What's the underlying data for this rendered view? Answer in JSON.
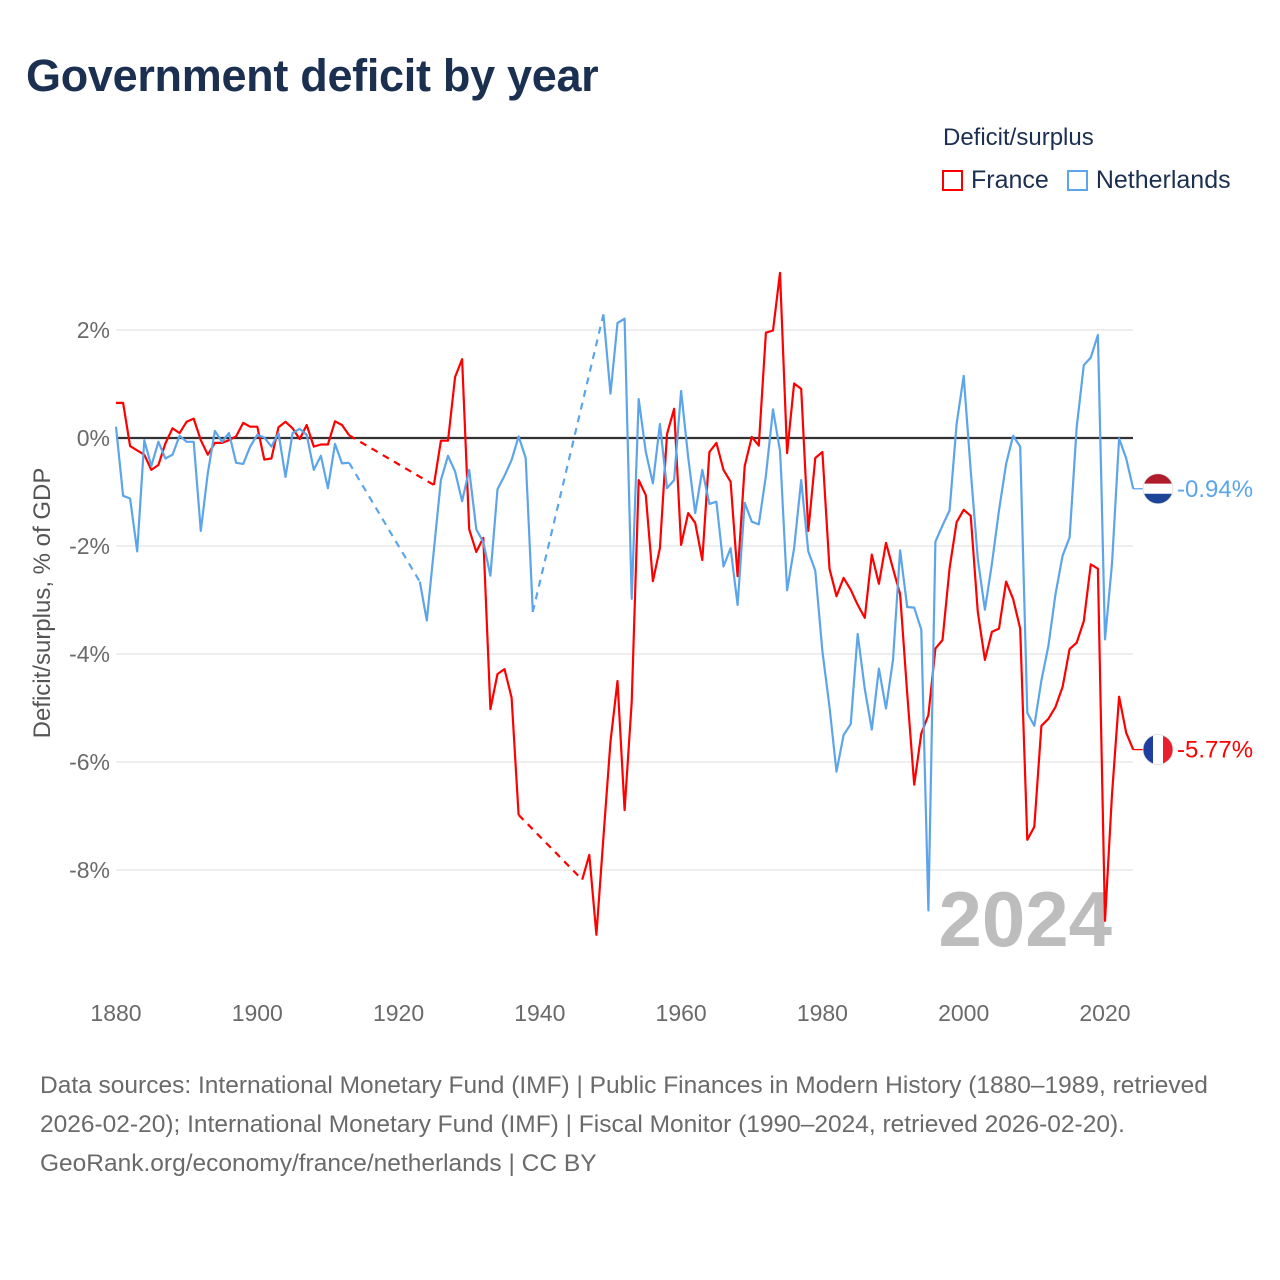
{
  "title": "Government deficit by year",
  "legend": {
    "title": "Deficit/surplus",
    "items": [
      {
        "label": "France",
        "color": "#ff0000"
      },
      {
        "label": "Netherlands",
        "color": "#5da5ea"
      }
    ]
  },
  "footer": {
    "sources": "Data sources: International Monetary Fund (IMF) | Public Finances in Modern History (1880–1989, retrieved 2026-02-20); International Monetary Fund (IMF) | Fiscal Monitor (1990–2024, retrieved 2026-02-20).",
    "credit": "GeoRank.org/economy/france/netherlands | CC BY"
  },
  "chart_data": {
    "type": "line",
    "title": "Government deficit by year",
    "xlabel": "",
    "ylabel": "Deficit/surplus, % of GDP",
    "xlim": [
      1880,
      2024
    ],
    "ylim": [
      -10,
      3.2
    ],
    "x_ticks": [
      "1880",
      "1900",
      "1920",
      "1940",
      "1960",
      "1980",
      "2000",
      "2020"
    ],
    "y_ticks": [
      {
        "value": 2,
        "label": "2%"
      },
      {
        "value": 0,
        "label": "0%"
      },
      {
        "value": -2,
        "label": "-2%"
      },
      {
        "value": -4,
        "label": "-4%"
      },
      {
        "value": -6,
        "label": "-6%"
      },
      {
        "value": -8,
        "label": "-8%"
      }
    ],
    "grid": true,
    "current_year_label": "2024",
    "end_labels": {
      "France": "-5.77%",
      "Netherlands": "-0.94%"
    },
    "series": [
      {
        "name": "France",
        "color": "#ff0000",
        "points": [
          [
            1880,
            0.65
          ],
          [
            1881,
            0.65
          ],
          [
            1882,
            -0.15
          ],
          [
            1883,
            -0.23
          ],
          [
            1884,
            -0.31
          ],
          [
            1885,
            -0.59
          ],
          [
            1886,
            -0.5
          ],
          [
            1887,
            -0.1
          ],
          [
            1888,
            0.18
          ],
          [
            1889,
            0.09
          ],
          [
            1890,
            0.3
          ],
          [
            1891,
            0.36
          ],
          [
            1892,
            -0.04
          ],
          [
            1893,
            -0.31
          ],
          [
            1894,
            -0.09
          ],
          [
            1895,
            -0.09
          ],
          [
            1896,
            -0.04
          ],
          [
            1897,
            0.03
          ],
          [
            1898,
            0.28
          ],
          [
            1899,
            0.21
          ],
          [
            1900,
            0.21
          ],
          [
            1901,
            -0.4
          ],
          [
            1902,
            -0.38
          ],
          [
            1903,
            0.2
          ],
          [
            1904,
            0.3
          ],
          [
            1905,
            0.18
          ],
          [
            1906,
            -0.02
          ],
          [
            1907,
            0.24
          ],
          [
            1908,
            -0.16
          ],
          [
            1909,
            -0.12
          ],
          [
            1910,
            -0.12
          ],
          [
            1911,
            0.31
          ],
          [
            1912,
            0.24
          ],
          [
            1913,
            0.05
          ],
          [
            1925,
            -0.87
          ],
          [
            1926,
            -0.05
          ],
          [
            1927,
            -0.05
          ],
          [
            1928,
            1.13
          ],
          [
            1929,
            1.46
          ],
          [
            1930,
            -1.69
          ],
          [
            1931,
            -2.11
          ],
          [
            1932,
            -1.85
          ],
          [
            1933,
            -5.02
          ],
          [
            1934,
            -4.37
          ],
          [
            1935,
            -4.28
          ],
          [
            1936,
            -4.81
          ],
          [
            1937,
            -6.98
          ],
          [
            1946,
            -8.18
          ],
          [
            1947,
            -7.72
          ],
          [
            1948,
            -9.2
          ],
          [
            1949,
            -7.4
          ],
          [
            1950,
            -5.62
          ],
          [
            1951,
            -4.5
          ],
          [
            1952,
            -6.89
          ],
          [
            1953,
            -4.89
          ],
          [
            1954,
            -0.78
          ],
          [
            1955,
            -1.06
          ],
          [
            1956,
            -2.65
          ],
          [
            1957,
            -2.04
          ],
          [
            1958,
            0.07
          ],
          [
            1959,
            0.54
          ],
          [
            1960,
            -1.98
          ],
          [
            1961,
            -1.39
          ],
          [
            1962,
            -1.57
          ],
          [
            1963,
            -2.26
          ],
          [
            1964,
            -0.26
          ],
          [
            1965,
            -0.09
          ],
          [
            1966,
            -0.59
          ],
          [
            1967,
            -0.81
          ],
          [
            1968,
            -2.56
          ],
          [
            1969,
            -0.52
          ],
          [
            1970,
            0.02
          ],
          [
            1971,
            -0.14
          ],
          [
            1972,
            1.95
          ],
          [
            1973,
            1.99
          ],
          [
            1974,
            3.06
          ],
          [
            1975,
            -0.28
          ],
          [
            1976,
            1.01
          ],
          [
            1977,
            0.91
          ],
          [
            1978,
            -1.72
          ],
          [
            1979,
            -0.37
          ],
          [
            1980,
            -0.26
          ],
          [
            1981,
            -2.42
          ],
          [
            1982,
            -2.93
          ],
          [
            1983,
            -2.59
          ],
          [
            1984,
            -2.81
          ],
          [
            1985,
            -3.09
          ],
          [
            1986,
            -3.33
          ],
          [
            1987,
            -2.16
          ],
          [
            1988,
            -2.7
          ],
          [
            1989,
            -1.94
          ],
          [
            1990,
            -2.42
          ],
          [
            1991,
            -2.89
          ],
          [
            1992,
            -4.73
          ],
          [
            1993,
            -6.42
          ],
          [
            1994,
            -5.47
          ],
          [
            1995,
            -5.13
          ],
          [
            1996,
            -3.9
          ],
          [
            1997,
            -3.74
          ],
          [
            1998,
            -2.41
          ],
          [
            1999,
            -1.56
          ],
          [
            2000,
            -1.33
          ],
          [
            2001,
            -1.44
          ],
          [
            2002,
            -3.22
          ],
          [
            2003,
            -4.11
          ],
          [
            2004,
            -3.59
          ],
          [
            2005,
            -3.53
          ],
          [
            2006,
            -2.66
          ],
          [
            2007,
            -2.98
          ],
          [
            2008,
            -3.53
          ],
          [
            2009,
            -7.44
          ],
          [
            2010,
            -7.2
          ],
          [
            2011,
            -5.33
          ],
          [
            2012,
            -5.2
          ],
          [
            2013,
            -4.98
          ],
          [
            2014,
            -4.61
          ],
          [
            2015,
            -3.91
          ],
          [
            2016,
            -3.79
          ],
          [
            2017,
            -3.39
          ],
          [
            2018,
            -2.34
          ],
          [
            2019,
            -2.42
          ],
          [
            2020,
            -8.94
          ],
          [
            2021,
            -6.6
          ],
          [
            2022,
            -4.79
          ],
          [
            2023,
            -5.46
          ],
          [
            2024,
            -5.77
          ]
        ]
      },
      {
        "name": "Netherlands",
        "color": "#5da5ea",
        "points": [
          [
            1880,
            0.21
          ],
          [
            1881,
            -1.07
          ],
          [
            1882,
            -1.12
          ],
          [
            1883,
            -2.1
          ],
          [
            1884,
            -0.04
          ],
          [
            1885,
            -0.52
          ],
          [
            1886,
            -0.07
          ],
          [
            1887,
            -0.38
          ],
          [
            1888,
            -0.31
          ],
          [
            1889,
            0.04
          ],
          [
            1890,
            -0.07
          ],
          [
            1891,
            -0.07
          ],
          [
            1892,
            -1.72
          ],
          [
            1893,
            -0.65
          ],
          [
            1894,
            0.13
          ],
          [
            1895,
            -0.07
          ],
          [
            1896,
            0.09
          ],
          [
            1897,
            -0.46
          ],
          [
            1898,
            -0.48
          ],
          [
            1899,
            -0.16
          ],
          [
            1900,
            0.06
          ],
          [
            1901,
            0.01
          ],
          [
            1902,
            -0.16
          ],
          [
            1903,
            0.09
          ],
          [
            1904,
            -0.72
          ],
          [
            1905,
            0.09
          ],
          [
            1906,
            0.17
          ],
          [
            1907,
            0.06
          ],
          [
            1908,
            -0.59
          ],
          [
            1909,
            -0.33
          ],
          [
            1910,
            -0.93
          ],
          [
            1911,
            -0.11
          ],
          [
            1912,
            -0.47
          ],
          [
            1913,
            -0.46
          ],
          [
            1923,
            -2.66
          ],
          [
            1924,
            -3.38
          ],
          [
            1925,
            -2.07
          ],
          [
            1926,
            -0.78
          ],
          [
            1927,
            -0.33
          ],
          [
            1928,
            -0.62
          ],
          [
            1929,
            -1.17
          ],
          [
            1930,
            -0.59
          ],
          [
            1931,
            -1.69
          ],
          [
            1932,
            -1.93
          ],
          [
            1933,
            -2.55
          ],
          [
            1934,
            -0.95
          ],
          [
            1935,
            -0.7
          ],
          [
            1936,
            -0.41
          ],
          [
            1937,
            0.03
          ],
          [
            1938,
            -0.37
          ],
          [
            1939,
            -3.22
          ],
          [
            1949,
            2.29
          ],
          [
            1950,
            0.82
          ],
          [
            1951,
            2.13
          ],
          [
            1952,
            2.21
          ],
          [
            1953,
            -2.98
          ],
          [
            1954,
            0.72
          ],
          [
            1955,
            -0.26
          ],
          [
            1956,
            -0.84
          ],
          [
            1957,
            0.26
          ],
          [
            1958,
            -0.93
          ],
          [
            1959,
            -0.78
          ],
          [
            1960,
            0.87
          ],
          [
            1961,
            -0.36
          ],
          [
            1962,
            -1.39
          ],
          [
            1963,
            -0.59
          ],
          [
            1964,
            -1.22
          ],
          [
            1965,
            -1.18
          ],
          [
            1966,
            -2.38
          ],
          [
            1967,
            -2.04
          ],
          [
            1968,
            -3.09
          ],
          [
            1969,
            -1.2
          ],
          [
            1970,
            -1.55
          ],
          [
            1971,
            -1.6
          ],
          [
            1972,
            -0.7
          ],
          [
            1973,
            0.53
          ],
          [
            1974,
            -0.24
          ],
          [
            1975,
            -2.82
          ],
          [
            1976,
            -2.04
          ],
          [
            1977,
            -0.78
          ],
          [
            1978,
            -2.1
          ],
          [
            1979,
            -2.46
          ],
          [
            1980,
            -3.95
          ],
          [
            1981,
            -4.98
          ],
          [
            1982,
            -6.18
          ],
          [
            1983,
            -5.5
          ],
          [
            1984,
            -5.3
          ],
          [
            1985,
            -3.63
          ],
          [
            1986,
            -4.65
          ],
          [
            1987,
            -5.4
          ],
          [
            1988,
            -4.27
          ],
          [
            1989,
            -5.01
          ],
          [
            1990,
            -4.11
          ],
          [
            1991,
            -2.08
          ],
          [
            1992,
            -3.13
          ],
          [
            1993,
            -3.14
          ],
          [
            1994,
            -3.55
          ],
          [
            1995,
            -8.75
          ],
          [
            1996,
            -1.92
          ],
          [
            1997,
            -1.62
          ],
          [
            1998,
            -1.34
          ],
          [
            1999,
            0.26
          ],
          [
            2000,
            1.15
          ],
          [
            2001,
            -0.6
          ],
          [
            2002,
            -2.24
          ],
          [
            2003,
            -3.18
          ],
          [
            2004,
            -2.33
          ],
          [
            2005,
            -1.34
          ],
          [
            2006,
            -0.48
          ],
          [
            2007,
            0.04
          ],
          [
            2008,
            -0.16
          ],
          [
            2009,
            -5.09
          ],
          [
            2010,
            -5.33
          ],
          [
            2011,
            -4.49
          ],
          [
            2012,
            -3.85
          ],
          [
            2013,
            -2.89
          ],
          [
            2014,
            -2.18
          ],
          [
            2015,
            -1.84
          ],
          [
            2016,
            0.2
          ],
          [
            2017,
            1.35
          ],
          [
            2018,
            1.49
          ],
          [
            2019,
            1.91
          ],
          [
            2020,
            -3.73
          ],
          [
            2021,
            -2.33
          ],
          [
            2022,
            -0.01
          ],
          [
            2023,
            -0.38
          ],
          [
            2024,
            -0.94
          ]
        ]
      }
    ]
  }
}
